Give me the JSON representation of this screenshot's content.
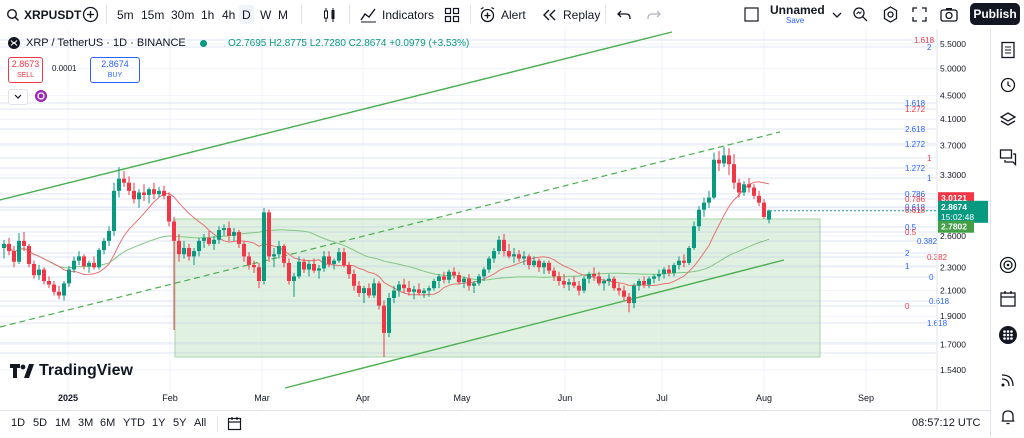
{
  "toolbar": {
    "symbol": "XRPUSDT",
    "intervals": [
      "5m",
      "15m",
      "30m",
      "1h",
      "4h",
      "D",
      "W",
      "M"
    ],
    "active_interval": "D",
    "indicators_label": "Indicators",
    "alert_label": "Alert",
    "replay_label": "Replay",
    "layout_name": "Unnamed",
    "layout_status": "Save",
    "publish_label": "Publish"
  },
  "legend": {
    "title": "XRP / TetherUS · 1D · BINANCE",
    "ohlc": "O2.7695 H2.8775 L2.7280 C2.8674 +0.0979 (+3.53%)",
    "sell_price": "2.8673",
    "sell_label": "SELL",
    "spread": "0.0001",
    "buy_price": "2.8674",
    "buy_label": "BUY"
  },
  "bottombar": {
    "ranges": [
      "1D",
      "5D",
      "1M",
      "3M",
      "6M",
      "YTD",
      "1Y",
      "5Y",
      "All"
    ],
    "clock": "08:57:12 UTC"
  },
  "brand": "TradingView",
  "colors": {
    "up": "#089981",
    "down": "#f23645",
    "channel": "#4caf50",
    "zone": "#c8e6c9",
    "fib_blue": "#2962ff",
    "fib_red": "#f23645"
  },
  "chart_data": {
    "type": "candlestick",
    "yscale": "log",
    "ylim": [
      1.43,
      6.4
    ],
    "y_ticks": [
      "5.5000",
      "5.0000",
      "4.5000",
      "4.1000",
      "3.7000",
      "3.3000",
      "2.9000",
      "2.6000",
      "2.3000",
      "2.1000",
      "1.9000",
      "1.7000",
      "1.5400"
    ],
    "x_ticks": [
      "2025",
      "Feb",
      "Mar",
      "Apr",
      "May",
      "Jun",
      "Jul",
      "Aug",
      "Sep"
    ],
    "last_price": "2.8674",
    "countdown": "15:02:48",
    "level_marker": "3.0121",
    "ma_marker": "2.7802",
    "fib_labels": [
      {
        "text": "1.618",
        "color": "red"
      },
      {
        "text": "2",
        "color": "blue"
      },
      {
        "text": "1.618",
        "color": "blue"
      },
      {
        "text": "1.272",
        "color": "red"
      },
      {
        "text": "2.618",
        "color": "blue"
      },
      {
        "text": "1.272",
        "color": "blue"
      },
      {
        "text": "1",
        "color": "red"
      },
      {
        "text": "1.272",
        "color": "blue"
      },
      {
        "text": "1",
        "color": "blue"
      },
      {
        "text": "0.786",
        "color": "blue"
      },
      {
        "text": "0.786",
        "color": "red"
      },
      {
        "text": "0.618",
        "color": "blue"
      },
      {
        "text": "0.618",
        "color": "red"
      },
      {
        "text": "0.5",
        "color": "blue"
      },
      {
        "text": "0.5",
        "color": "red"
      },
      {
        "text": "0.382",
        "color": "blue"
      },
      {
        "text": "2",
        "color": "blue"
      },
      {
        "text": "0.382",
        "color": "red"
      },
      {
        "text": "1",
        "color": "blue"
      },
      {
        "text": "0",
        "color": "blue"
      },
      {
        "text": "0.618",
        "color": "blue"
      },
      {
        "text": "0",
        "color": "red"
      },
      {
        "text": "1.618",
        "color": "blue"
      }
    ]
  }
}
